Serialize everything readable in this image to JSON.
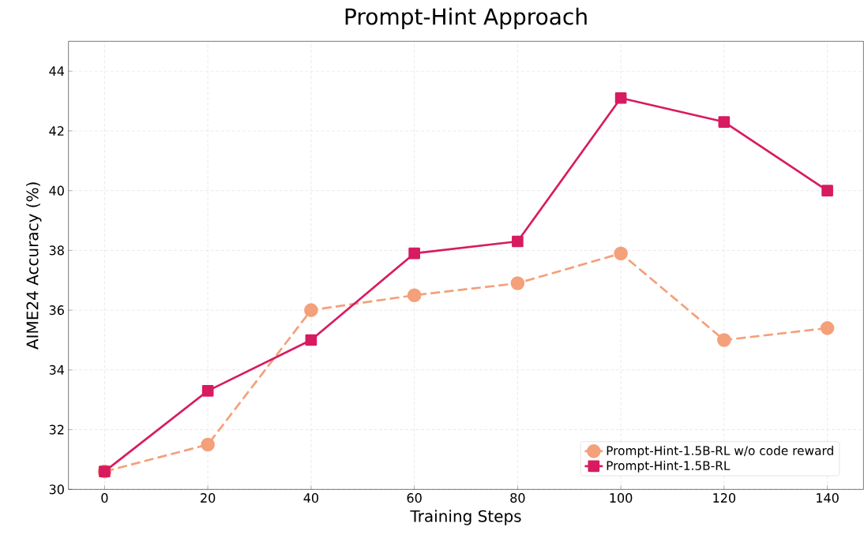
{
  "chart_data": {
    "type": "line",
    "title": "Prompt-Hint Approach",
    "xlabel": "Training Steps",
    "ylabel": "AIME24 Accuracy (%)",
    "x": [
      0,
      20,
      40,
      60,
      80,
      100,
      120,
      140
    ],
    "series": [
      {
        "name": "Prompt-Hint-1.5B-RL w/o code reward",
        "color": "#f4a07a",
        "marker": "circle",
        "line_style": "dashed",
        "values": [
          30.6,
          31.5,
          36.0,
          36.5,
          36.9,
          37.9,
          35.0,
          35.4
        ]
      },
      {
        "name": "Prompt-Hint-1.5B-RL",
        "color": "#d81b60",
        "marker": "square",
        "line_style": "solid",
        "values": [
          30.6,
          33.3,
          35.0,
          37.9,
          38.3,
          43.1,
          42.3,
          40.0
        ]
      }
    ],
    "xlim": [
      -7,
      147
    ],
    "ylim": [
      30,
      45
    ],
    "xticks": [
      0,
      20,
      40,
      60,
      80,
      100,
      120,
      140
    ],
    "yticks": [
      30,
      32,
      34,
      36,
      38,
      40,
      42,
      44
    ],
    "grid": true,
    "legend": "bottom right"
  }
}
